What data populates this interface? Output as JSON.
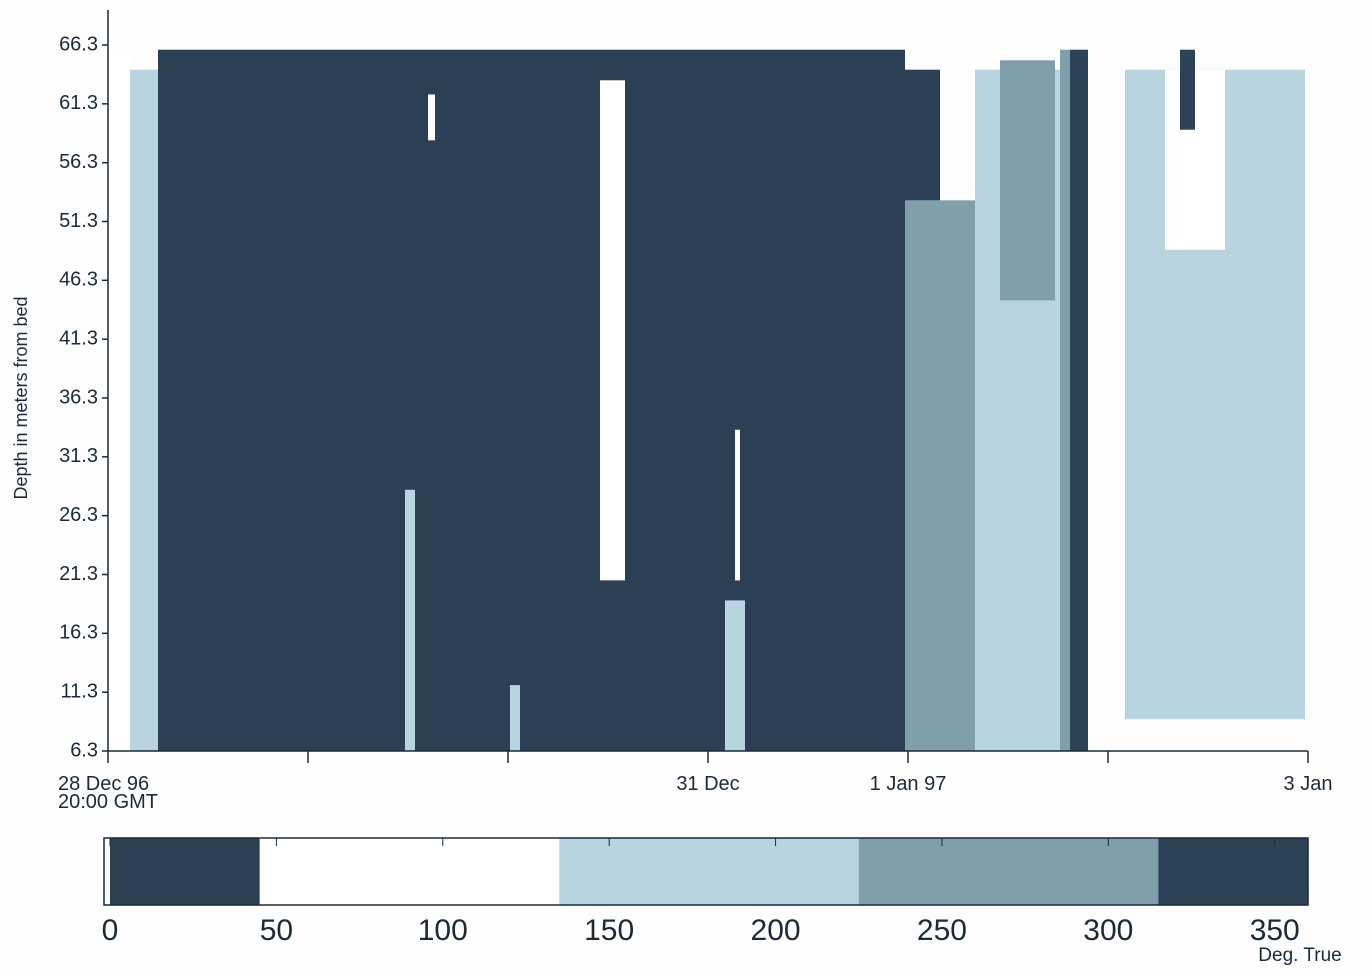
{
  "chart_data": {
    "type": "heatmap",
    "ylabel": "Depth in meters from bed",
    "ylim": [
      6.3,
      66.3
    ],
    "yticks": [
      6.3,
      11.3,
      16.3,
      21.3,
      26.3,
      31.3,
      36.3,
      41.3,
      46.3,
      51.3,
      56.3,
      61.3,
      66.3
    ],
    "xlim": [
      0,
      6
    ],
    "xticks": [
      {
        "value": 0,
        "label": "28 Dec 96\n20:00 GMT"
      },
      {
        "value": 3,
        "label": "31 Dec"
      },
      {
        "value": 4,
        "label": "1 Jan 97"
      },
      {
        "value": 6,
        "label": "3 Jan"
      }
    ],
    "minor_xticks": [
      1,
      2,
      5
    ],
    "cells": [
      {
        "x": [
          0.02,
          0.11
        ],
        "y": [
          6.3,
          65.9
        ],
        "value": 90
      },
      {
        "x": [
          0.11,
          0.25
        ],
        "y": [
          6.3,
          64.2
        ],
        "value": 180
      },
      {
        "x": [
          0.25,
          3.985
        ],
        "y": [
          6.3,
          65.9
        ],
        "value": 20
      },
      {
        "x": [
          2.46,
          2.585
        ],
        "y": [
          20.8,
          63.3
        ],
        "value": 90
      },
      {
        "x": [
          1.485,
          1.535
        ],
        "y": [
          6.3,
          28.5
        ],
        "value": 180
      },
      {
        "x": [
          1.6,
          1.635
        ],
        "y": [
          58.2,
          62.1
        ],
        "value": 90
      },
      {
        "x": [
          2.01,
          2.06
        ],
        "y": [
          6.3,
          11.9
        ],
        "value": 180
      },
      {
        "x": [
          3.085,
          3.185
        ],
        "y": [
          6.3,
          19.1
        ],
        "value": 180
      },
      {
        "x": [
          3.135,
          3.16
        ],
        "y": [
          20.8,
          33.6
        ],
        "value": 90
      },
      {
        "x": [
          3.985,
          4.335
        ],
        "y": [
          6.3,
          53.1
        ],
        "value": 270
      },
      {
        "x": [
          3.985,
          4.16
        ],
        "y": [
          53.1,
          64.2
        ],
        "value": 20
      },
      {
        "x": [
          4.335,
          4.76
        ],
        "y": [
          6.3,
          64.2
        ],
        "value": 180
      },
      {
        "x": [
          4.46,
          4.735
        ],
        "y": [
          44.6,
          65.0
        ],
        "value": 270
      },
      {
        "x": [
          4.76,
          4.81
        ],
        "y": [
          6.3,
          65.9
        ],
        "value": 270
      },
      {
        "x": [
          4.81,
          4.9
        ],
        "y": [
          6.3,
          65.9
        ],
        "value": 340
      },
      {
        "x": [
          5.085,
          5.985
        ],
        "y": [
          9.0,
          64.2
        ],
        "value": 170
      },
      {
        "x": [
          5.285,
          5.585
        ],
        "y": [
          48.9,
          64.2
        ],
        "value": 90
      },
      {
        "x": [
          5.36,
          5.435
        ],
        "y": [
          59.1,
          65.9
        ],
        "value": 340
      }
    ],
    "colorbar": {
      "label": "Deg. True",
      "bins": [
        0,
        45,
        135,
        225,
        315,
        360
      ],
      "colors": [
        "#2b3f55",
        "#ffffff",
        "#b7d4e0",
        "#7f9fab",
        "#2c4256"
      ],
      "xlim": [
        0,
        360
      ],
      "xticks": [
        0,
        50,
        100,
        150,
        200,
        250,
        300,
        350
      ]
    }
  }
}
